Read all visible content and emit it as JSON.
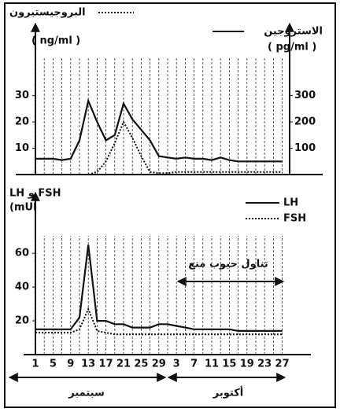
{
  "chart_data": [
    {
      "type": "line",
      "y_label": "( ng/ml )",
      "y2_label": "( pg/ml )",
      "ylim": [
        0,
        55
      ],
      "yticks": [
        10,
        20,
        30
      ],
      "y2lim": [
        0,
        550
      ],
      "y2ticks": [
        100,
        200,
        300
      ],
      "grid": true,
      "series": [
        {
          "name": "البروجيستيرون",
          "color": "#111",
          "dash": true,
          "values": [
            null,
            null,
            null,
            null,
            null,
            null,
            0,
            1,
            5,
            12,
            20,
            14,
            7,
            1,
            0.5,
            0.5,
            1,
            1,
            1,
            1,
            1,
            1,
            1,
            1,
            1,
            1,
            1,
            1,
            1
          ]
        },
        {
          "name": "الاستروجين",
          "color": "#111",
          "dash": false,
          "axis": "y2",
          "values": [
            60,
            60,
            60,
            55,
            60,
            130,
            280,
            200,
            130,
            150,
            270,
            210,
            170,
            130,
            70,
            65,
            60,
            65,
            60,
            60,
            55,
            65,
            55,
            50,
            50,
            50,
            50,
            50,
            50
          ]
        }
      ]
    },
    {
      "type": "line",
      "y_label": "LH و FSH",
      "y_unit": "(mUI",
      "ylim": [
        0,
        95
      ],
      "yticks": [
        20,
        40,
        60
      ],
      "grid": true,
      "categories": [
        "1",
        null,
        "5",
        null,
        "9",
        null,
        "13",
        null,
        "17",
        null,
        "21",
        null,
        "25",
        null,
        "29",
        null,
        "3",
        null,
        "7",
        null,
        "11",
        null,
        "15",
        null,
        "19",
        null,
        "23",
        null,
        "27"
      ],
      "months": [
        "سبتمبر",
        "أكتوبر"
      ],
      "annotation": "تناول حبوب منع",
      "series": [
        {
          "name": "LH",
          "color": "#111",
          "dash": false,
          "values": [
            15,
            15,
            15,
            15,
            15,
            22,
            65,
            20,
            20,
            18,
            18,
            16,
            16,
            16,
            18,
            18,
            17,
            16,
            15,
            15,
            15,
            15,
            15,
            14,
            14,
            14,
            14,
            14,
            14
          ]
        },
        {
          "name": "FSH",
          "color": "#111",
          "dash": true,
          "values": [
            13,
            13,
            13,
            13,
            13,
            15,
            27,
            14,
            13,
            12,
            12,
            12,
            12,
            12,
            12,
            12,
            12,
            12,
            12,
            12,
            12,
            12,
            12,
            12,
            12,
            12,
            12,
            12,
            12
          ]
        }
      ]
    }
  ]
}
